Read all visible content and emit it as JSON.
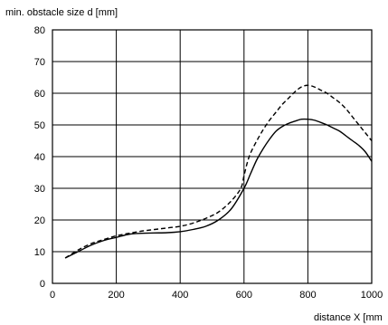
{
  "chart_data": {
    "type": "line",
    "title": "",
    "ylabel": "min. obstacle size d [mm]",
    "xlabel": "distance X [mm",
    "xlim": [
      0,
      1000
    ],
    "ylim": [
      0,
      80
    ],
    "x_ticks": [
      0,
      200,
      400,
      600,
      800,
      1000
    ],
    "y_ticks": [
      0,
      10,
      20,
      30,
      40,
      50,
      60,
      70,
      80
    ],
    "grid": true,
    "legend": "none",
    "series": [
      {
        "style": "solid",
        "color": "#000000",
        "x": [
          40,
          80,
          120,
          160,
          200,
          240,
          280,
          320,
          360,
          400,
          440,
          480,
          520,
          560,
          600,
          620,
          640,
          660,
          680,
          700,
          720,
          740,
          760,
          780,
          800,
          820,
          840,
          860,
          880,
          900,
          920,
          940,
          960,
          980,
          1000
        ],
        "y": [
          8,
          10,
          12,
          13.5,
          14.5,
          15.5,
          15.8,
          15.9,
          16,
          16.3,
          17,
          18,
          20,
          23.5,
          30,
          34.5,
          39,
          42.5,
          45.5,
          48,
          49.5,
          50.5,
          51.2,
          51.8,
          51.8,
          51.5,
          50.8,
          50,
          49,
          48,
          46.5,
          45,
          43.5,
          41.5,
          38.5
        ]
      },
      {
        "style": "dashed",
        "color": "#000000",
        "x": [
          40,
          80,
          120,
          160,
          200,
          240,
          280,
          320,
          360,
          400,
          440,
          480,
          520,
          560,
          590,
          600,
          610,
          620,
          640,
          660,
          680,
          700,
          720,
          740,
          760,
          780,
          800,
          820,
          840,
          860,
          880,
          900,
          920,
          940,
          960,
          980,
          1000
        ],
        "y": [
          8,
          10.5,
          12.5,
          13.8,
          15,
          15.8,
          16.5,
          17,
          17.5,
          18,
          19,
          20.5,
          22.5,
          26,
          30,
          34,
          38,
          41,
          45,
          48.5,
          51.5,
          54,
          56.5,
          58.5,
          60.5,
          62,
          62.5,
          62,
          61,
          60,
          58.5,
          57,
          55,
          52.5,
          50,
          47.5,
          45
        ]
      }
    ]
  }
}
